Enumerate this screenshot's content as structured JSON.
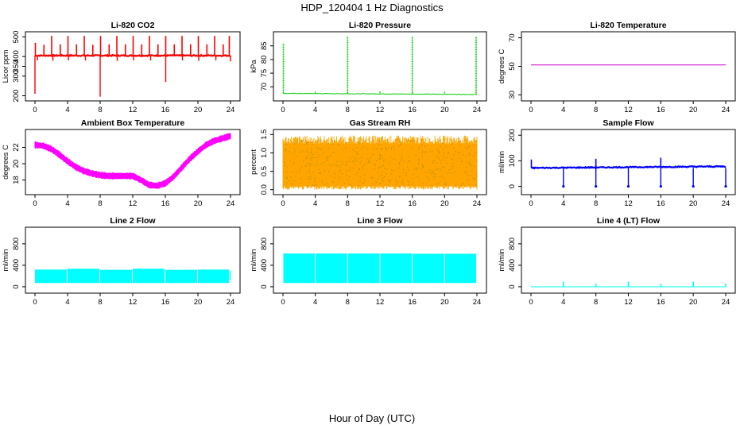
{
  "figure": {
    "title": "HDP_120404  1 Hz Diagnostics",
    "xlabel": "Hour of Day (UTC)"
  },
  "chart_data": [
    {
      "id": "co2",
      "type": "line",
      "title": "Li-820 CO2",
      "ylabel": "Licor ppm",
      "color": "#ff0000",
      "xlim": [
        0,
        24
      ],
      "xticks": [
        0,
        4,
        8,
        12,
        16,
        20,
        24
      ],
      "ylim": [
        190,
        510
      ],
      "yticks": [
        200,
        300,
        350,
        400,
        500
      ],
      "series": [
        {
          "baseline": 405,
          "noise": 6,
          "band_width": 3,
          "spikes_up": [
            {
              "x": 0.05,
              "y": 470
            },
            {
              "x": 1.1,
              "y": 460
            },
            {
              "x": 2.05,
              "y": 505
            },
            {
              "x": 3.1,
              "y": 462
            },
            {
              "x": 4.05,
              "y": 505
            },
            {
              "x": 5.1,
              "y": 462
            },
            {
              "x": 6.05,
              "y": 505
            },
            {
              "x": 7.1,
              "y": 460
            },
            {
              "x": 8.05,
              "y": 505
            },
            {
              "x": 9.1,
              "y": 462
            },
            {
              "x": 10.05,
              "y": 505
            },
            {
              "x": 11.1,
              "y": 462
            },
            {
              "x": 12.05,
              "y": 505
            },
            {
              "x": 13.1,
              "y": 462
            },
            {
              "x": 14.05,
              "y": 505
            },
            {
              "x": 15.1,
              "y": 462
            },
            {
              "x": 16.05,
              "y": 505
            },
            {
              "x": 17.1,
              "y": 462
            },
            {
              "x": 18.05,
              "y": 505
            },
            {
              "x": 19.1,
              "y": 462
            },
            {
              "x": 20.05,
              "y": 505
            },
            {
              "x": 21.1,
              "y": 462
            },
            {
              "x": 22.05,
              "y": 505
            },
            {
              "x": 23.1,
              "y": 462
            },
            {
              "x": 23.85,
              "y": 505
            }
          ],
          "spikes_down": [
            {
              "x": 0.0,
              "y": 210
            },
            {
              "x": 0.3,
              "y": 380
            },
            {
              "x": 2.2,
              "y": 378
            },
            {
              "x": 4.1,
              "y": 380
            },
            {
              "x": 6.2,
              "y": 380
            },
            {
              "x": 8.0,
              "y": 195
            },
            {
              "x": 10.1,
              "y": 378
            },
            {
              "x": 12.1,
              "y": 380
            },
            {
              "x": 14.2,
              "y": 380
            },
            {
              "x": 16.05,
              "y": 270
            },
            {
              "x": 18.1,
              "y": 380
            },
            {
              "x": 20.1,
              "y": 378
            },
            {
              "x": 22.2,
              "y": 380
            },
            {
              "x": 24.0,
              "y": 375
            }
          ]
        }
      ]
    },
    {
      "id": "pressure",
      "type": "line",
      "title": "Li-820 Pressure",
      "ylabel": "kPa",
      "color": "#00cc00",
      "xlim": [
        0,
        24
      ],
      "xticks": [
        0,
        4,
        8,
        12,
        16,
        20,
        24
      ],
      "ylim": [
        66,
        89
      ],
      "yticks": [
        70,
        75,
        80,
        85
      ],
      "series": [
        {
          "baseline_start": 67.6,
          "baseline_end": 67.2,
          "noise": 0.2,
          "spikes_up": [
            {
              "x": 0.05,
              "y": 86
            },
            {
              "x": 8.0,
              "y": 88.5
            },
            {
              "x": 16.0,
              "y": 88.5
            },
            {
              "x": 23.9,
              "y": 88.5
            }
          ],
          "dips": [
            {
              "x": 4.0,
              "y": 68.2
            },
            {
              "x": 12.0,
              "y": 68.3
            },
            {
              "x": 20.0,
              "y": 68.2
            }
          ]
        }
      ]
    },
    {
      "id": "temperature",
      "type": "line",
      "title": "Li-820 Temperature",
      "ylabel": "degrees C",
      "color": "#cc00cc",
      "xlim": [
        0,
        24
      ],
      "xticks": [
        0,
        4,
        8,
        12,
        16,
        20,
        24
      ],
      "ylim": [
        28,
        72
      ],
      "yticks": [
        30,
        50,
        70
      ],
      "series": [
        {
          "points": [
            [
              0,
              51
            ],
            [
              24,
              51
            ]
          ]
        }
      ]
    },
    {
      "id": "ambient",
      "type": "line",
      "title": "Ambient Box Temperature",
      "ylabel": "degrees C",
      "color": "#ff00ff",
      "xlim": [
        0,
        24
      ],
      "xticks": [
        0,
        4,
        8,
        12,
        16,
        20,
        24
      ],
      "ylim": [
        16.6,
        23.8
      ],
      "yticks": [
        18,
        20,
        22
      ],
      "series": [
        {
          "band": 0.6,
          "points": [
            [
              0,
              22.3
            ],
            [
              1,
              22.2
            ],
            [
              2,
              21.8
            ],
            [
              3,
              21.1
            ],
            [
              4,
              20.3
            ],
            [
              5,
              19.6
            ],
            [
              6,
              19.1
            ],
            [
              7,
              18.8
            ],
            [
              8,
              18.6
            ],
            [
              9,
              18.5
            ],
            [
              10,
              18.5
            ],
            [
              11,
              18.5
            ],
            [
              12,
              18.5
            ],
            [
              13,
              18.0
            ],
            [
              14,
              17.4
            ],
            [
              15,
              17.3
            ],
            [
              16,
              17.6
            ],
            [
              17,
              18.4
            ],
            [
              18,
              19.5
            ],
            [
              19,
              20.6
            ],
            [
              20,
              21.5
            ],
            [
              21,
              22.3
            ],
            [
              22,
              22.8
            ],
            [
              23,
              23.1
            ],
            [
              24,
              23.4
            ]
          ]
        }
      ]
    },
    {
      "id": "rh",
      "type": "line",
      "title": "Gas Stream RH",
      "ylabel": "percent",
      "color": "#ffa500",
      "xlim": [
        0,
        24
      ],
      "xticks": [
        0,
        4,
        8,
        12,
        16,
        20,
        24
      ],
      "ylim": [
        -0.05,
        1.55
      ],
      "yticks": [
        0.0,
        0.5,
        1.0,
        1.5
      ],
      "series": [
        {
          "low": 0.1,
          "high": 1.25,
          "max_peak": 1.5,
          "min_trough": 0.0
        }
      ]
    },
    {
      "id": "sample_flow",
      "type": "line",
      "title": "Sample Flow",
      "ylabel": "ml/min",
      "color": "#0000ff",
      "xlim": [
        0,
        24
      ],
      "xticks": [
        0,
        4,
        8,
        12,
        16,
        20,
        24
      ],
      "ylim": [
        -20,
        210
      ],
      "yticks": [
        0,
        100,
        200
      ],
      "series": [
        {
          "baseline_start": 72,
          "baseline_end": 78,
          "noise": 4,
          "spikes_up": [
            {
              "x": 0.05,
              "y": 105
            },
            {
              "x": 8.0,
              "y": 108
            },
            {
              "x": 16.0,
              "y": 112
            }
          ],
          "spikes_down": [
            {
              "x": 4.0,
              "y": 0
            },
            {
              "x": 8.0,
              "y": 0
            },
            {
              "x": 12.0,
              "y": 0
            },
            {
              "x": 16.0,
              "y": 0
            },
            {
              "x": 20.0,
              "y": 0
            },
            {
              "x": 24.0,
              "y": 0
            }
          ]
        }
      ]
    },
    {
      "id": "line2",
      "type": "area",
      "title": "Line 2 Flow",
      "ylabel": "ml/min",
      "color": "#00ffff",
      "xlim": [
        0,
        24
      ],
      "xticks": [
        0,
        4,
        8,
        12,
        16,
        20,
        24
      ],
      "ylim": [
        -60,
        1050
      ],
      "yticks": [
        0,
        400,
        800
      ],
      "series": [
        {
          "low": 70,
          "segments": [
            {
              "x0": 0,
              "x1": 3.9,
              "high": 320
            },
            {
              "x0": 4,
              "x1": 7.9,
              "high": 335
            },
            {
              "x0": 8,
              "x1": 11.9,
              "high": 315
            },
            {
              "x0": 12,
              "x1": 15.9,
              "high": 335
            },
            {
              "x0": 16,
              "x1": 19.9,
              "high": 315
            },
            {
              "x0": 20,
              "x1": 23.8,
              "high": 320
            }
          ]
        }
      ]
    },
    {
      "id": "line3",
      "type": "area",
      "title": "Line 3 Flow",
      "ylabel": "ml/min",
      "color": "#00ffff",
      "xlim": [
        0,
        24
      ],
      "xticks": [
        0,
        4,
        8,
        12,
        16,
        20,
        24
      ],
      "ylim": [
        -60,
        1050
      ],
      "yticks": [
        0,
        400,
        800
      ],
      "series": [
        {
          "low": 70,
          "segments": [
            {
              "x0": 0.05,
              "x1": 3.95,
              "high": 620
            },
            {
              "x0": 4.05,
              "x1": 7.95,
              "high": 620
            },
            {
              "x0": 8.05,
              "x1": 11.95,
              "high": 620
            },
            {
              "x0": 12.05,
              "x1": 15.95,
              "high": 620
            },
            {
              "x0": 16.05,
              "x1": 19.95,
              "high": 615
            },
            {
              "x0": 20.05,
              "x1": 23.9,
              "high": 615
            }
          ]
        }
      ]
    },
    {
      "id": "line4",
      "type": "line",
      "title": "Line 4 (LT) Flow",
      "ylabel": "ml/min",
      "color": "#00ffff",
      "xlim": [
        0,
        24
      ],
      "xticks": [
        0,
        4,
        8,
        12,
        16,
        20,
        24
      ],
      "ylim": [
        -60,
        1050
      ],
      "yticks": [
        0,
        400,
        800
      ],
      "series": [
        {
          "baseline": 0,
          "spikes_up": [
            {
              "x": 4.0,
              "y": 95
            },
            {
              "x": 8.0,
              "y": 55
            },
            {
              "x": 12.0,
              "y": 95
            },
            {
              "x": 16.0,
              "y": 55
            },
            {
              "x": 20.0,
              "y": 95
            },
            {
              "x": 24.0,
              "y": 55
            }
          ]
        }
      ]
    }
  ]
}
